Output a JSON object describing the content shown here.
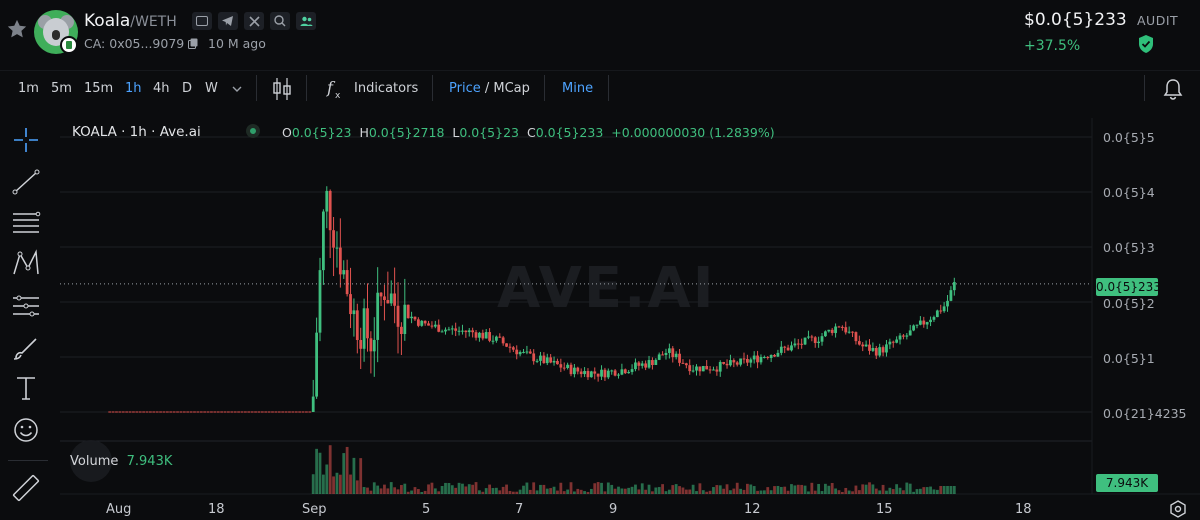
{
  "header": {
    "token_name": "Koala",
    "pair_suffix": "/WETH",
    "contract": "CA: 0x05...9079",
    "age": "10 M ago",
    "price": "$0.0{5}233",
    "change": "+37.5%",
    "audit_label": "AUDIT",
    "icons": [
      "web-icon",
      "telegram-icon",
      "x-icon",
      "search-icon",
      "community-icon"
    ]
  },
  "toolbar": {
    "timeframes": [
      "1m",
      "5m",
      "15m",
      "1h",
      "4h",
      "D",
      "W"
    ],
    "active_timeframe": "1h",
    "indicators_label": "Indicators",
    "price_label": "Price",
    "slash": " / ",
    "mcap_label": "MCap",
    "mine_label": "Mine"
  },
  "legend": {
    "symbol": "KOALA · 1h · Ave.ai",
    "o_label": "O",
    "o": "0.0{5}23",
    "h_label": "H",
    "h": "0.0{5}2718",
    "l_label": "L",
    "l": "0.0{5}23",
    "c_label": "C",
    "c": "0.0{5}233",
    "change": "+0.000000030 (1.2839%)"
  },
  "watermark": "AVE.AI",
  "volume": {
    "label": "Volume",
    "value": "7.943K",
    "tag": "7.943K"
  },
  "price_tag": "0.0{5}233",
  "colors": {
    "up": "#3fbf7f",
    "down": "#e0524f",
    "accent": "#4da3ff",
    "background": "#0b0c0e"
  },
  "chart_data": {
    "type": "candlestick",
    "title": "KOALA · 1h · Ave.ai",
    "y_tick_labels": [
      "0.0{5}5",
      "0.0{5}4",
      "0.0{5}3",
      "0.0{5}2",
      "0.0{5}1",
      "0.0{21}4235"
    ],
    "y_tick_values": [
      5,
      4,
      3,
      2,
      1,
      0
    ],
    "y_unit_note": "",
    "x_tick_labels": [
      "Aug",
      "18",
      "Sep",
      "5",
      "7",
      "9",
      "12",
      "15",
      "18"
    ],
    "last_price": 2.33,
    "ylim": [
      0,
      5.3
    ],
    "grid": true,
    "series_shape": [
      {
        "x": 0.0,
        "y": 0.0
      },
      {
        "x": 0.24,
        "y": 0.0
      },
      {
        "x": 0.245,
        "y": 1.5
      },
      {
        "x": 0.255,
        "y": 4.0
      },
      {
        "x": 0.27,
        "y": 3.0
      },
      {
        "x": 0.29,
        "y": 1.7
      },
      {
        "x": 0.31,
        "y": 1.3
      },
      {
        "x": 0.325,
        "y": 2.3
      },
      {
        "x": 0.34,
        "y": 1.9
      },
      {
        "x": 0.37,
        "y": 1.6
      },
      {
        "x": 0.4,
        "y": 1.5
      },
      {
        "x": 0.43,
        "y": 1.45
      },
      {
        "x": 0.46,
        "y": 1.3
      },
      {
        "x": 0.49,
        "y": 1.05
      },
      {
        "x": 0.52,
        "y": 0.9
      },
      {
        "x": 0.55,
        "y": 0.75
      },
      {
        "x": 0.58,
        "y": 0.7
      },
      {
        "x": 0.61,
        "y": 0.78
      },
      {
        "x": 0.64,
        "y": 0.9
      },
      {
        "x": 0.66,
        "y": 1.1
      },
      {
        "x": 0.69,
        "y": 0.8
      },
      {
        "x": 0.72,
        "y": 0.82
      },
      {
        "x": 0.75,
        "y": 0.9
      },
      {
        "x": 0.78,
        "y": 1.05
      },
      {
        "x": 0.81,
        "y": 1.2
      },
      {
        "x": 0.84,
        "y": 1.35
      },
      {
        "x": 0.865,
        "y": 1.6
      },
      {
        "x": 0.89,
        "y": 1.2
      },
      {
        "x": 0.91,
        "y": 1.1
      },
      {
        "x": 0.94,
        "y": 1.35
      },
      {
        "x": 0.97,
        "y": 1.7
      },
      {
        "x": 0.99,
        "y": 1.95
      },
      {
        "x": 1.0,
        "y": 2.33
      }
    ]
  }
}
